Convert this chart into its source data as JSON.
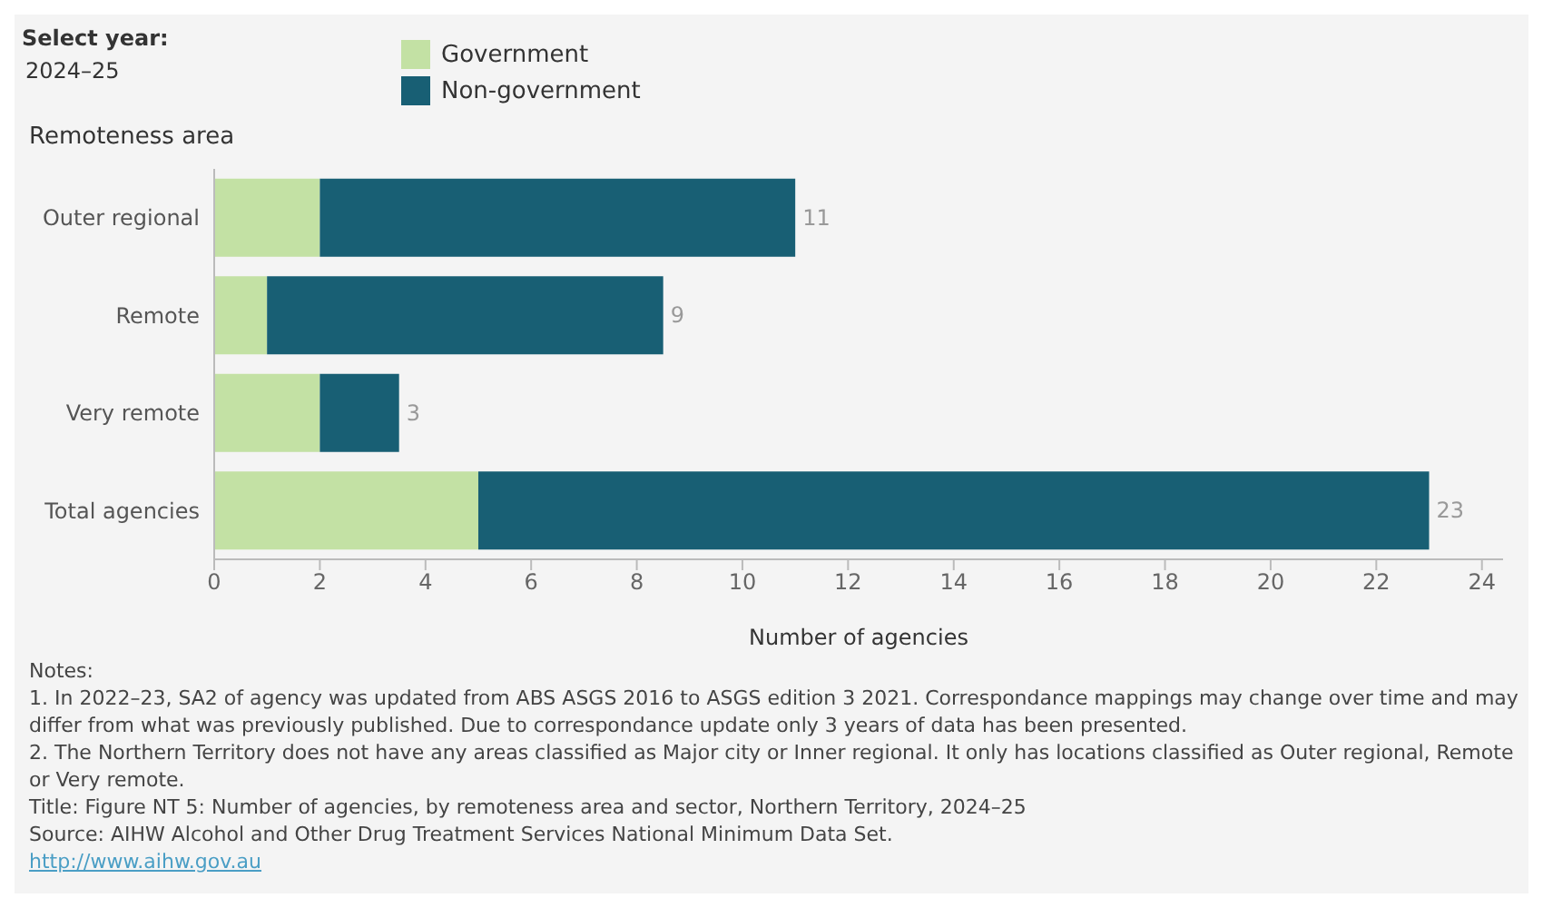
{
  "chart_data": {
    "type": "bar",
    "orientation": "horizontal",
    "stacked": true,
    "ylabel": "Remoteness area",
    "xlabel": "Number of agencies",
    "categories": [
      "Outer regional",
      "Remote",
      "Very remote",
      "Total agencies"
    ],
    "series": [
      {
        "name": "Government",
        "color": "#c3e1a4",
        "values": [
          2,
          1,
          2,
          5
        ]
      },
      {
        "name": "Non-government",
        "color": "#185f74",
        "values": [
          9,
          7.5,
          1.5,
          18
        ]
      }
    ],
    "totals": [
      "11",
      "9",
      "3",
      "23"
    ],
    "xlim": [
      0,
      24.4
    ],
    "xticks": [
      0,
      2,
      4,
      6,
      8,
      10,
      12,
      14,
      16,
      18,
      20,
      22,
      24
    ],
    "grid": false,
    "legend": "top",
    "annotations": [
      "Select year:",
      "2024–25",
      "Notes:",
      "1. In 2022–23, SA2 of agency was updated from ABS ASGS 2016 to ASGS edition 3 2021. Correspondance mappings may change over time and may differ from what was previously published. Due to correspondance update only 3 years of data has been presented.",
      "2. The Northern Territory does not have any areas classified as Major city or Inner regional. It only has locations classified as Outer regional, Remote or Very remote.",
      "Title: Figure NT 5: Number of agencies, by remoteness area and sector, Northern Territory, 2024–25",
      "Source: AIHW Alcohol and Other Drug Treatment Services National Minimum Data Set.",
      "http://www.aihw.gov.au"
    ]
  }
}
